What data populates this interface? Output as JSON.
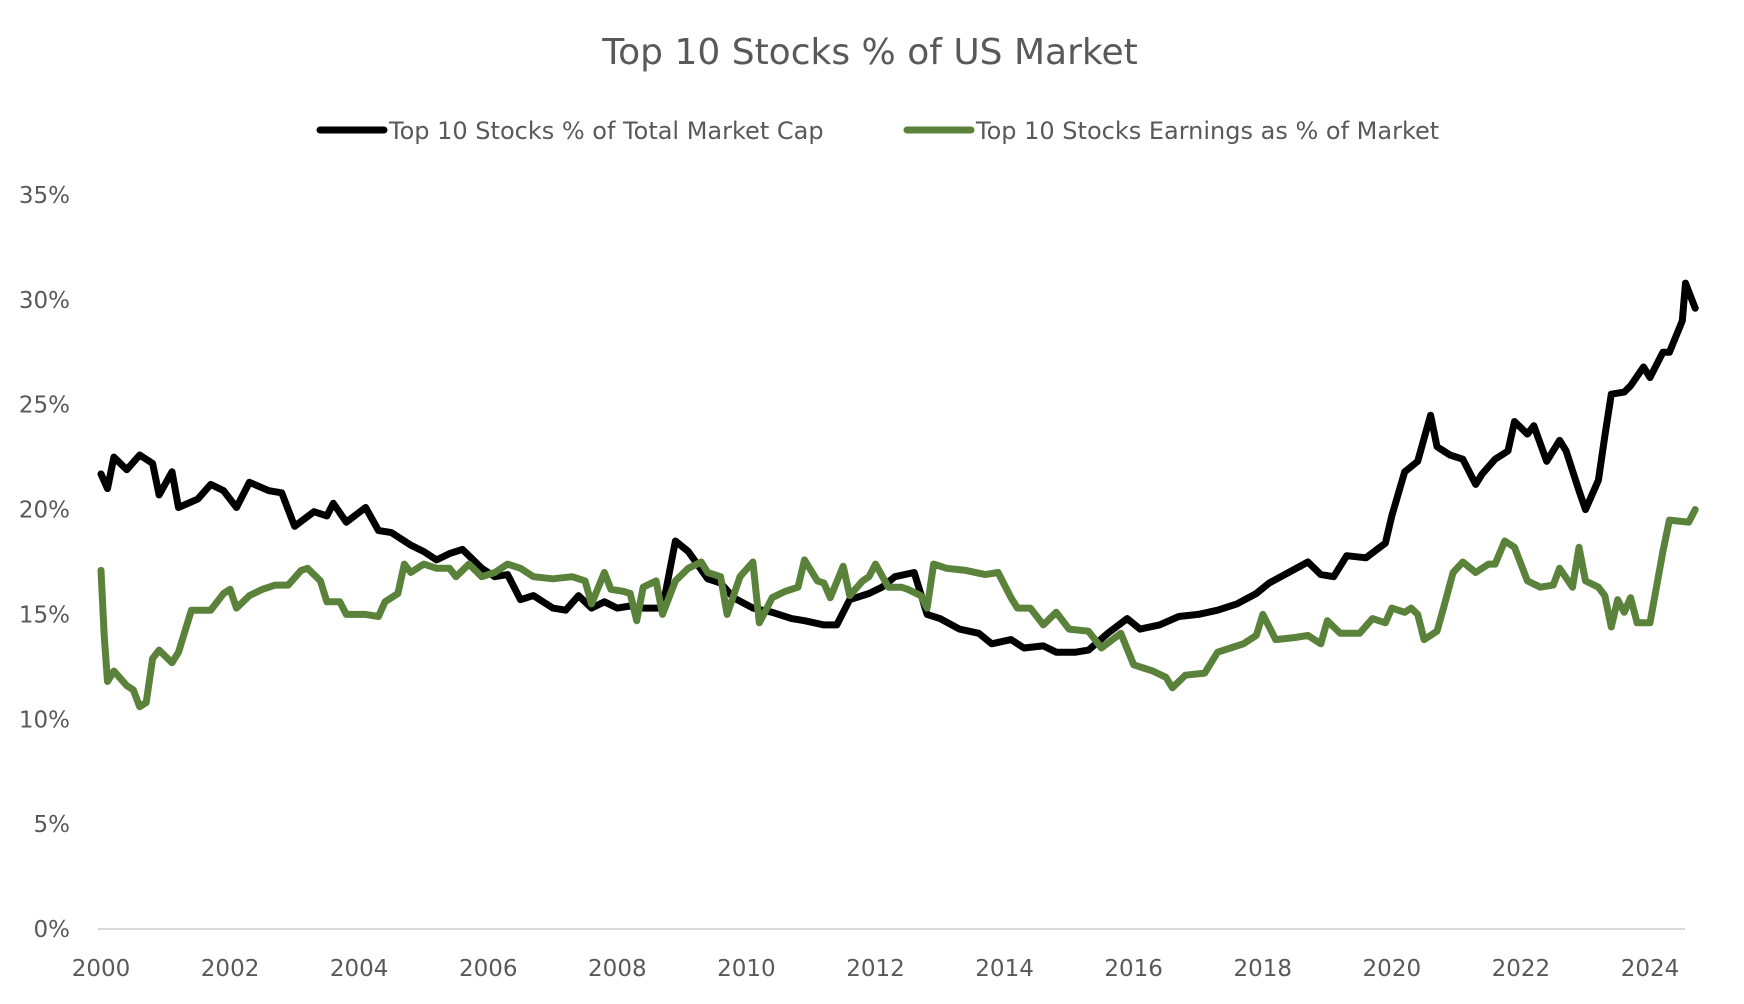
{
  "chart_data": {
    "type": "line",
    "title": "Top 10 Stocks % of US Market",
    "xlabel": "",
    "ylabel": "",
    "xlim": [
      2000,
      2024.7
    ],
    "ylim": [
      0,
      35
    ],
    "grid": false,
    "legend_position": "top-center",
    "x_ticks": [
      "2000",
      "2002",
      "2004",
      "2006",
      "2008",
      "2010",
      "2012",
      "2014",
      "2016",
      "2018",
      "2020",
      "2022",
      "2024"
    ],
    "y_ticks": [
      "0%",
      "5%",
      "10%",
      "15%",
      "20%",
      "25%",
      "30%",
      "35%"
    ],
    "series": [
      {
        "name": "Top 10 Stocks % of Total Market Cap",
        "color": "#000000",
        "x": [
          2000.0,
          2000.1,
          2000.2,
          2000.4,
          2000.6,
          2000.8,
          2000.9,
          2001.1,
          2001.2,
          2001.5,
          2001.7,
          2001.9,
          2002.1,
          2002.3,
          2002.6,
          2002.8,
          2003.0,
          2003.3,
          2003.5,
          2003.6,
          2003.8,
          2004.1,
          2004.3,
          2004.5,
          2004.8,
          2005.0,
          2005.2,
          2005.4,
          2005.6,
          2005.9,
          2006.1,
          2006.3,
          2006.5,
          2006.7,
          2007.0,
          2007.2,
          2007.4,
          2007.6,
          2007.8,
          2008.0,
          2008.2,
          2008.4,
          2008.7,
          2008.9,
          2009.1,
          2009.4,
          2009.6,
          2009.8,
          2010.1,
          2010.4,
          2010.7,
          2010.9,
          2011.2,
          2011.4,
          2011.6,
          2011.9,
          2012.1,
          2012.3,
          2012.6,
          2012.8,
          2013.0,
          2013.3,
          2013.6,
          2013.8,
          2014.1,
          2014.3,
          2014.6,
          2014.8,
          2015.1,
          2015.3,
          2015.6,
          2015.9,
          2016.1,
          2016.4,
          2016.7,
          2017.0,
          2017.3,
          2017.6,
          2017.9,
          2018.1,
          2018.4,
          2018.7,
          2018.9,
          2019.1,
          2019.3,
          2019.6,
          2019.9,
          2020.0,
          2020.2,
          2020.4,
          2020.5,
          2020.6,
          2020.7,
          2020.9,
          2021.1,
          2021.3,
          2021.4,
          2021.6,
          2021.8,
          2021.9,
          2022.1,
          2022.2,
          2022.4,
          2022.6,
          2022.7,
          2022.9,
          2023.0,
          2023.2,
          2023.3,
          2023.4,
          2023.6,
          2023.7,
          2023.9,
          2024.0,
          2024.2,
          2024.3,
          2024.5,
          2024.55,
          2024.7
        ],
        "values": [
          21.7,
          21.0,
          22.5,
          21.9,
          22.6,
          22.2,
          20.7,
          21.8,
          20.1,
          20.5,
          21.2,
          20.9,
          20.1,
          21.3,
          20.9,
          20.8,
          19.2,
          19.9,
          19.7,
          20.3,
          19.4,
          20.1,
          19.0,
          18.9,
          18.3,
          18.0,
          17.6,
          17.9,
          18.1,
          17.2,
          16.8,
          16.9,
          15.7,
          15.9,
          15.3,
          15.2,
          15.9,
          15.3,
          15.6,
          15.3,
          15.4,
          15.3,
          15.3,
          18.5,
          18.0,
          16.7,
          16.5,
          15.8,
          15.3,
          15.1,
          14.8,
          14.7,
          14.5,
          14.5,
          15.7,
          16.0,
          16.3,
          16.8,
          17.0,
          15.0,
          14.8,
          14.3,
          14.1,
          13.6,
          13.8,
          13.4,
          13.5,
          13.2,
          13.2,
          13.3,
          14.1,
          14.8,
          14.3,
          14.5,
          14.9,
          15.0,
          15.2,
          15.5,
          16.0,
          16.5,
          17.0,
          17.5,
          16.9,
          16.8,
          17.8,
          17.7,
          18.4,
          19.7,
          21.8,
          22.3,
          23.4,
          24.5,
          23.0,
          22.6,
          22.4,
          21.2,
          21.7,
          22.4,
          22.8,
          24.2,
          23.6,
          24.0,
          22.3,
          23.3,
          22.8,
          20.9,
          20.0,
          21.4,
          23.5,
          25.5,
          25.6,
          25.9,
          26.8,
          26.3,
          27.5,
          27.5,
          29.0,
          30.8,
          29.6
        ]
      },
      {
        "name": "Top 10 Stocks Earnings as % of Market",
        "color": "#5b823a",
        "x": [
          2000.0,
          2000.05,
          2000.1,
          2000.2,
          2000.4,
          2000.5,
          2000.6,
          2000.7,
          2000.8,
          2000.9,
          2001.1,
          2001.2,
          2001.4,
          2001.7,
          2001.9,
          2002.0,
          2002.1,
          2002.3,
          2002.5,
          2002.7,
          2002.9,
          2003.1,
          2003.2,
          2003.4,
          2003.5,
          2003.7,
          2003.8,
          2004.1,
          2004.3,
          2004.4,
          2004.6,
          2004.7,
          2004.8,
          2005.0,
          2005.2,
          2005.4,
          2005.5,
          2005.7,
          2005.9,
          2006.1,
          2006.3,
          2006.5,
          2006.7,
          2007.0,
          2007.3,
          2007.5,
          2007.6,
          2007.8,
          2007.9,
          2008.1,
          2008.2,
          2008.3,
          2008.4,
          2008.6,
          2008.7,
          2008.9,
          2009.1,
          2009.3,
          2009.4,
          2009.6,
          2009.7,
          2009.9,
          2010.1,
          2010.2,
          2010.4,
          2010.6,
          2010.8,
          2010.9,
          2011.1,
          2011.2,
          2011.3,
          2011.5,
          2011.6,
          2011.8,
          2011.9,
          2012.0,
          2012.2,
          2012.4,
          2012.5,
          2012.7,
          2012.8,
          2012.9,
          2013.1,
          2013.4,
          2013.7,
          2013.9,
          2014.1,
          2014.2,
          2014.4,
          2014.6,
          2014.8,
          2015.0,
          2015.3,
          2015.5,
          2015.8,
          2016.0,
          2016.3,
          2016.5,
          2016.6,
          2016.8,
          2017.1,
          2017.3,
          2017.5,
          2017.7,
          2017.9,
          2018.0,
          2018.2,
          2018.5,
          2018.7,
          2018.9,
          2019.0,
          2019.2,
          2019.5,
          2019.7,
          2019.9,
          2020.0,
          2020.2,
          2020.3,
          2020.4,
          2020.5,
          2020.7,
          2020.8,
          2020.95,
          2021.1,
          2021.3,
          2021.5,
          2021.6,
          2021.75,
          2021.9,
          2022.1,
          2022.3,
          2022.5,
          2022.6,
          2022.8,
          2022.9,
          2023.0,
          2023.2,
          2023.3,
          2023.4,
          2023.5,
          2023.6,
          2023.7,
          2023.8,
          2024.0,
          2024.2,
          2024.3,
          2024.6,
          2024.7
        ],
        "values": [
          17.1,
          14.0,
          11.8,
          12.3,
          11.6,
          11.4,
          10.6,
          10.8,
          12.9,
          13.3,
          12.7,
          13.2,
          15.2,
          15.2,
          16.0,
          16.2,
          15.3,
          15.9,
          16.2,
          16.4,
          16.4,
          17.1,
          17.2,
          16.6,
          15.6,
          15.6,
          15.0,
          15.0,
          14.9,
          15.6,
          16.0,
          17.4,
          17.0,
          17.4,
          17.2,
          17.2,
          16.8,
          17.4,
          16.8,
          17.0,
          17.4,
          17.2,
          16.8,
          16.7,
          16.8,
          16.6,
          15.5,
          17.0,
          16.2,
          16.1,
          16.0,
          14.7,
          16.3,
          16.6,
          15.0,
          16.6,
          17.2,
          17.5,
          17.0,
          16.8,
          15.0,
          16.8,
          17.5,
          14.6,
          15.8,
          16.1,
          16.3,
          17.6,
          16.6,
          16.5,
          15.8,
          17.3,
          15.9,
          16.6,
          16.8,
          17.4,
          16.3,
          16.3,
          16.2,
          15.9,
          15.3,
          17.4,
          17.2,
          17.1,
          16.9,
          17.0,
          15.8,
          15.3,
          15.3,
          14.5,
          15.1,
          14.3,
          14.2,
          13.4,
          14.1,
          12.6,
          12.3,
          12.0,
          11.5,
          12.1,
          12.2,
          13.2,
          13.4,
          13.6,
          14.0,
          15.0,
          13.8,
          13.9,
          14.0,
          13.6,
          14.7,
          14.1,
          14.1,
          14.8,
          14.6,
          15.3,
          15.1,
          15.3,
          15.0,
          13.8,
          14.2,
          15.3,
          17.0,
          17.5,
          17.0,
          17.4,
          17.4,
          18.5,
          18.2,
          16.6,
          16.3,
          16.4,
          17.2,
          16.3,
          18.2,
          16.6,
          16.3,
          15.9,
          14.4,
          15.7,
          15.1,
          15.8,
          14.6,
          14.6,
          18.0,
          19.5,
          19.4,
          20.0
        ]
      }
    ]
  }
}
